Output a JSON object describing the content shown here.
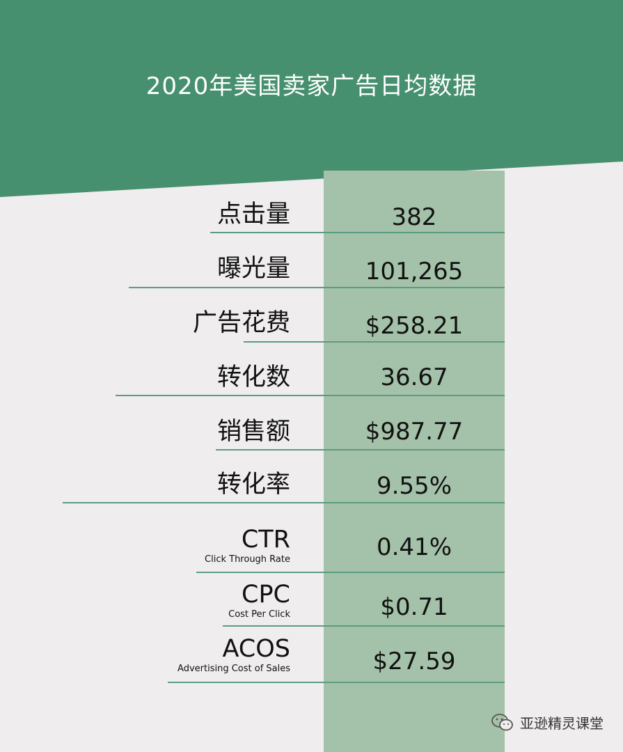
{
  "title": "2020年美国卖家广告日均数据",
  "rows": [
    {
      "label": "点击量",
      "value": "382"
    },
    {
      "label": "曝光量",
      "value": "101,265"
    },
    {
      "label": "广告花费",
      "value": "$258.21"
    },
    {
      "label": "转化数",
      "value": "36.67"
    },
    {
      "label": "销售额",
      "value": "$987.77"
    },
    {
      "label": "转化率",
      "value": "9.55%"
    },
    {
      "label": "CTR",
      "sublabel": "Click Through Rate",
      "value": "0.41%"
    },
    {
      "label": "CPC",
      "sublabel": "Cost Per Click",
      "value": "$0.71"
    },
    {
      "label": "ACOS",
      "sublabel": "Advertising Cost of Sales",
      "value": "$27.59"
    }
  ],
  "footer": {
    "text": "亚逊精灵课堂",
    "icon": "wechat-icon"
  },
  "colors": {
    "header": "#47906f",
    "band": "#a4c1a9",
    "background": "#efeded",
    "line": "#5a9c82"
  }
}
